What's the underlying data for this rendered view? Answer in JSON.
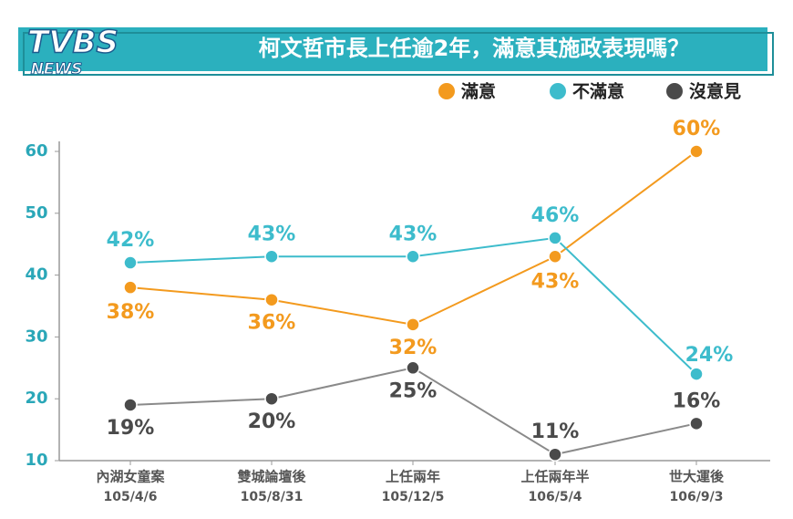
{
  "logo": {
    "name": "TVBS",
    "sub": "NEWS"
  },
  "chart_data": {
    "type": "line",
    "title": "柯文哲市長上任逾2年，滿意其施政表現嗎？",
    "categories": [
      "內湖女童案",
      "雙城論壇後",
      "上任兩年",
      "上任兩年半",
      "世大運後"
    ],
    "x_sublabels": [
      "105/4/6",
      "105/8/31",
      "105/12/5",
      "106/5/4",
      "106/9/3"
    ],
    "series": [
      {
        "name": "滿意",
        "color": "#f39a1e",
        "values": [
          38,
          36,
          32,
          43,
          60
        ],
        "value_labels": [
          "38%",
          "36%",
          "32%",
          "43%",
          "60%"
        ]
      },
      {
        "name": "不滿意",
        "color": "#3dbccc",
        "values": [
          42,
          43,
          43,
          46,
          24
        ],
        "value_labels": [
          "42%",
          "43%",
          "43%",
          "46%",
          "24%"
        ]
      },
      {
        "name": "沒意見",
        "color": "#4a4a4a",
        "values": [
          19,
          20,
          25,
          11,
          16
        ],
        "value_labels": [
          "19%",
          "20%",
          "25%",
          "11%",
          "16%"
        ]
      }
    ],
    "ylim": [
      10,
      60
    ],
    "yticks": [
      10,
      20,
      30,
      40,
      50,
      60
    ]
  }
}
